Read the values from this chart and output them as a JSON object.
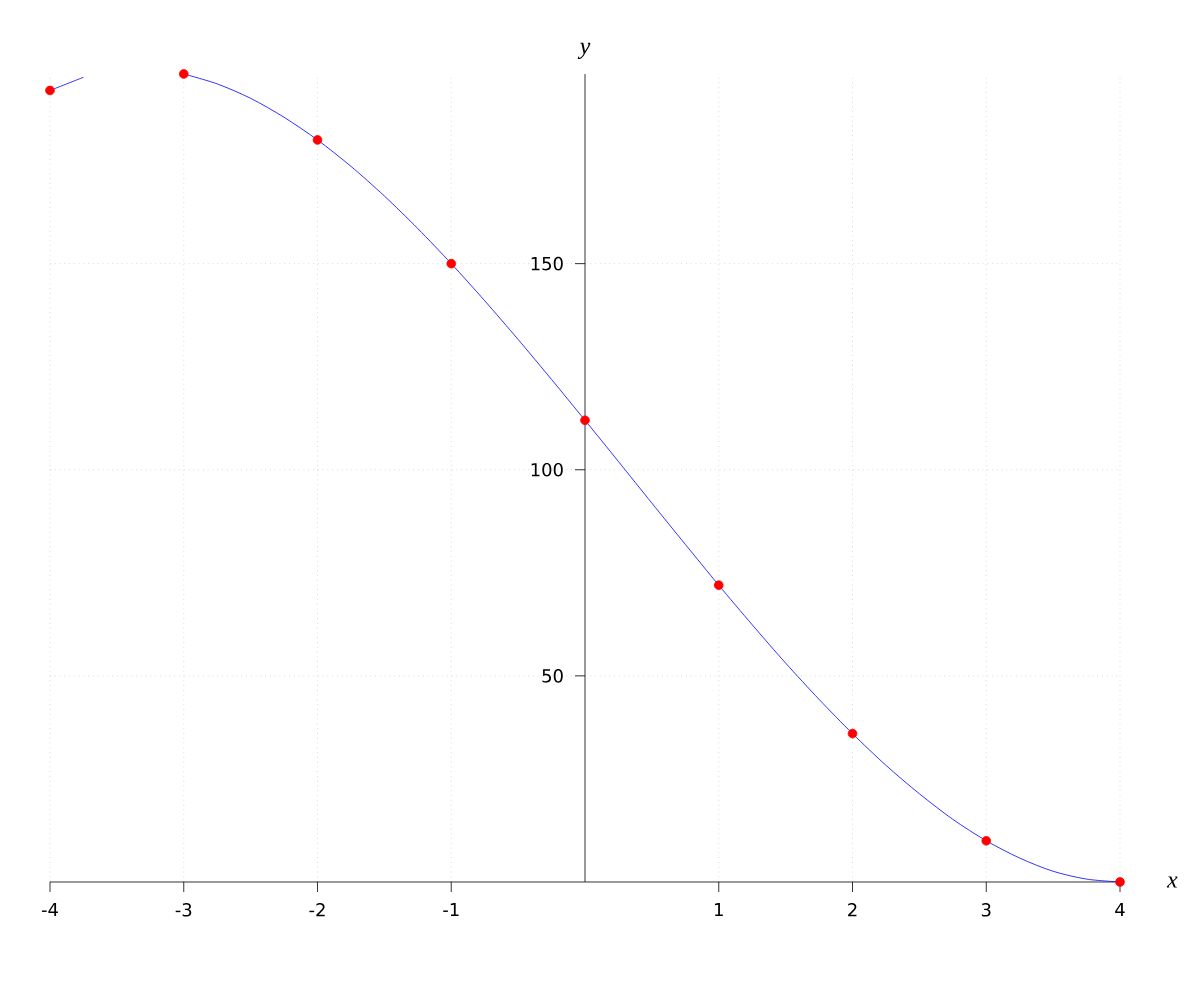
{
  "chart_data": {
    "type": "line",
    "xlabel": "x",
    "ylabel": "y",
    "xlim": [
      -4,
      4
    ],
    "ylim": [
      0,
      196
    ],
    "xticks": [
      -4,
      -3,
      -2,
      -1,
      1,
      2,
      3,
      4
    ],
    "yticks": [
      50,
      100,
      150
    ],
    "grid": true,
    "series": [
      {
        "color": "#0000ff",
        "marker": "none",
        "line_style": "solid",
        "x": [
          -4,
          -3.75,
          -3.5,
          -3.25,
          -3,
          -2.75,
          -2.5,
          -2.25,
          -2,
          -1.75,
          -1.5,
          -1.25,
          -1,
          -0.75,
          -0.5,
          -0.25,
          0,
          0.25,
          0.5,
          0.75,
          1,
          1.25,
          1.5,
          1.75,
          2,
          2.25,
          2.5,
          2.75,
          3,
          3.25,
          3.5,
          3.75,
          4
        ],
        "values": [
          192,
          195.2,
          null,
          null,
          196,
          193.6,
          190.1,
          185.5,
          180,
          173.6,
          166.4,
          158.5,
          150,
          141.0,
          131.6,
          121.9,
          112,
          102.0,
          91.9,
          81.9,
          72,
          62.4,
          53.1,
          44.3,
          36,
          28.3,
          21.4,
          15.2,
          10,
          5.8,
          2.6,
          0.7,
          0
        ]
      },
      {
        "type": "scatter",
        "color": "#ff0000",
        "marker": "circle",
        "x": [
          -4,
          -3,
          -2,
          -1,
          0,
          1,
          2,
          3,
          4
        ],
        "values": [
          192,
          196,
          180,
          150,
          112,
          72,
          36,
          10,
          0
        ]
      }
    ]
  }
}
